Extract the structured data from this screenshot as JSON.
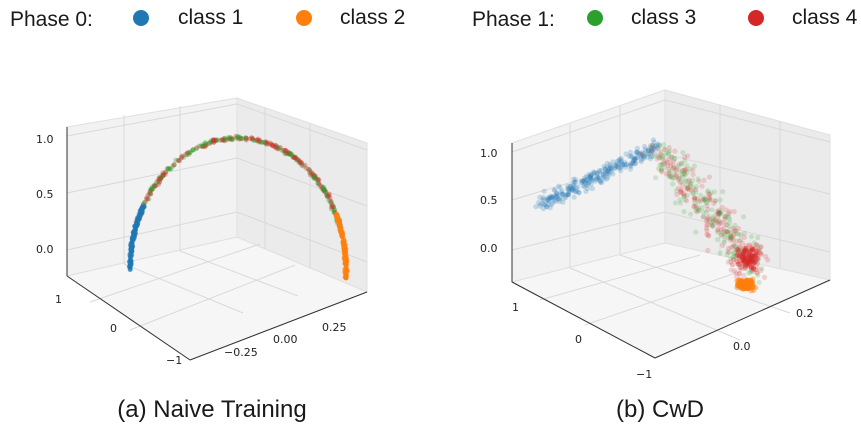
{
  "legend": [
    {
      "phase": "Phase 0:",
      "items": [
        {
          "label": "class 1",
          "color": "#1f77b4"
        },
        {
          "label": "class 2",
          "color": "#ff7f0e"
        }
      ]
    },
    {
      "phase": "Phase 1:",
      "items": [
        {
          "label": "class 3",
          "color": "#2ca02c"
        },
        {
          "label": "class 4",
          "color": "#d62728"
        }
      ]
    }
  ],
  "chart_data": [
    {
      "type": "scatter",
      "projection": "3d",
      "caption": "(a) Naive Training",
      "x_ticks": [
        "−0.25",
        "0.00",
        "0.25"
      ],
      "y_ticks": [
        "−1",
        "0",
        "1"
      ],
      "z_ticks": [
        "0.0",
        "0.5",
        "1.0"
      ],
      "series": [
        {
          "name": "class 1",
          "color": "#1f77b4",
          "region": "left end of arc"
        },
        {
          "name": "class 2",
          "color": "#ff7f0e",
          "region": "right end of arc"
        },
        {
          "name": "class 3",
          "color": "#2ca02c",
          "region": "along the arc"
        },
        {
          "name": "class 4",
          "color": "#d62728",
          "region": "along the arc"
        }
      ]
    },
    {
      "type": "scatter",
      "projection": "3d",
      "caption": "(b) CwD",
      "x_ticks": [
        "0.0",
        "0.2"
      ],
      "y_ticks": [
        "−1",
        "0",
        "1"
      ],
      "z_ticks": [
        "0.0",
        "0.5",
        "1.0"
      ],
      "series": [
        {
          "name": "class 1",
          "color": "#1f77b4",
          "region": "left cluster"
        },
        {
          "name": "class 2",
          "color": "#ff7f0e",
          "region": "bottom-right cluster"
        },
        {
          "name": "class 3",
          "color": "#2ca02c",
          "region": "spread upper-right"
        },
        {
          "name": "class 4",
          "color": "#d62728",
          "region": "spread upper-right"
        }
      ]
    }
  ]
}
